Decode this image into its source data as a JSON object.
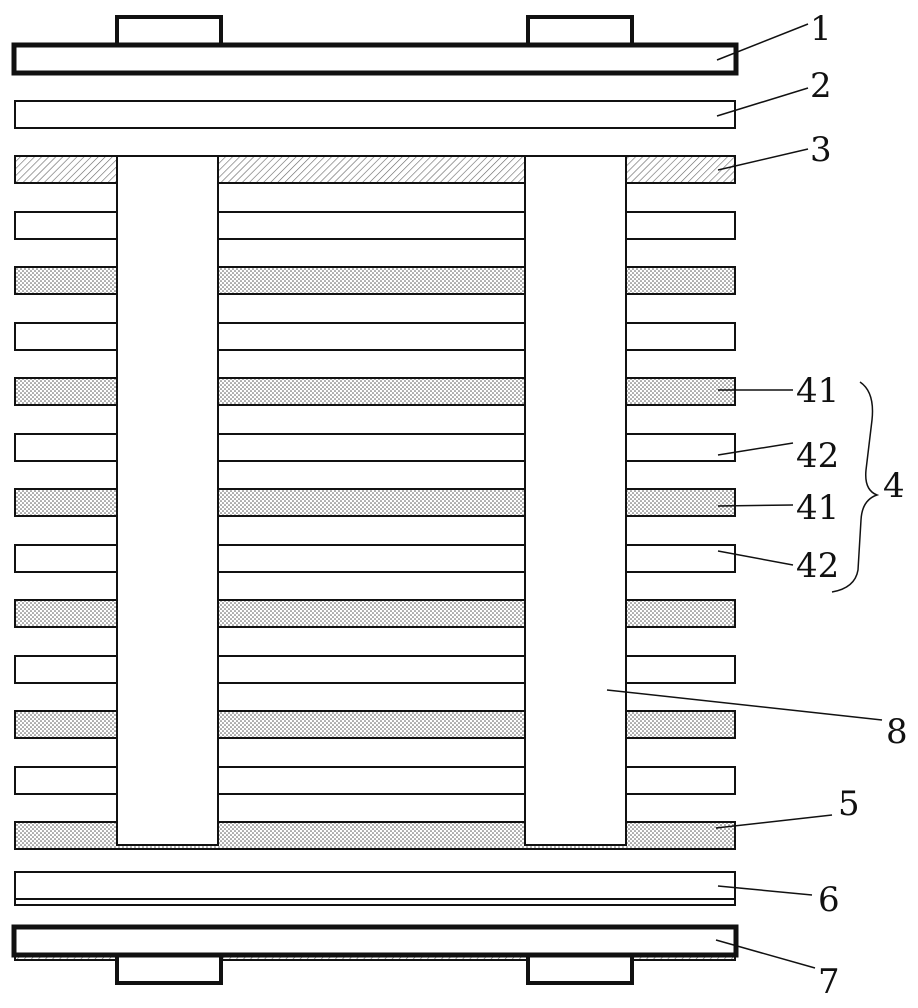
{
  "colors": {
    "stroke": "#111111",
    "plain_fill": "#ffffff",
    "dotted_fill": "#e2e2e2",
    "hatched_fill": "#d8d8d8"
  },
  "labels": {
    "plate1": "1",
    "layer2": "2",
    "layer3": "3",
    "layer41_a": "41",
    "layer42_a": "42",
    "layer41_b": "41",
    "layer42_b": "42",
    "group4": "4",
    "pillar8": "8",
    "layer5": "5",
    "layer6": "6",
    "plate7": "7"
  },
  "stack": {
    "alternating_layers": [
      "42",
      "41",
      "42",
      "41",
      "42",
      "41",
      "42",
      "41",
      "42",
      "41",
      "42",
      "41",
      "42"
    ],
    "pillar_count": 2,
    "tabs_top": 2,
    "tabs_bottom": 2
  }
}
